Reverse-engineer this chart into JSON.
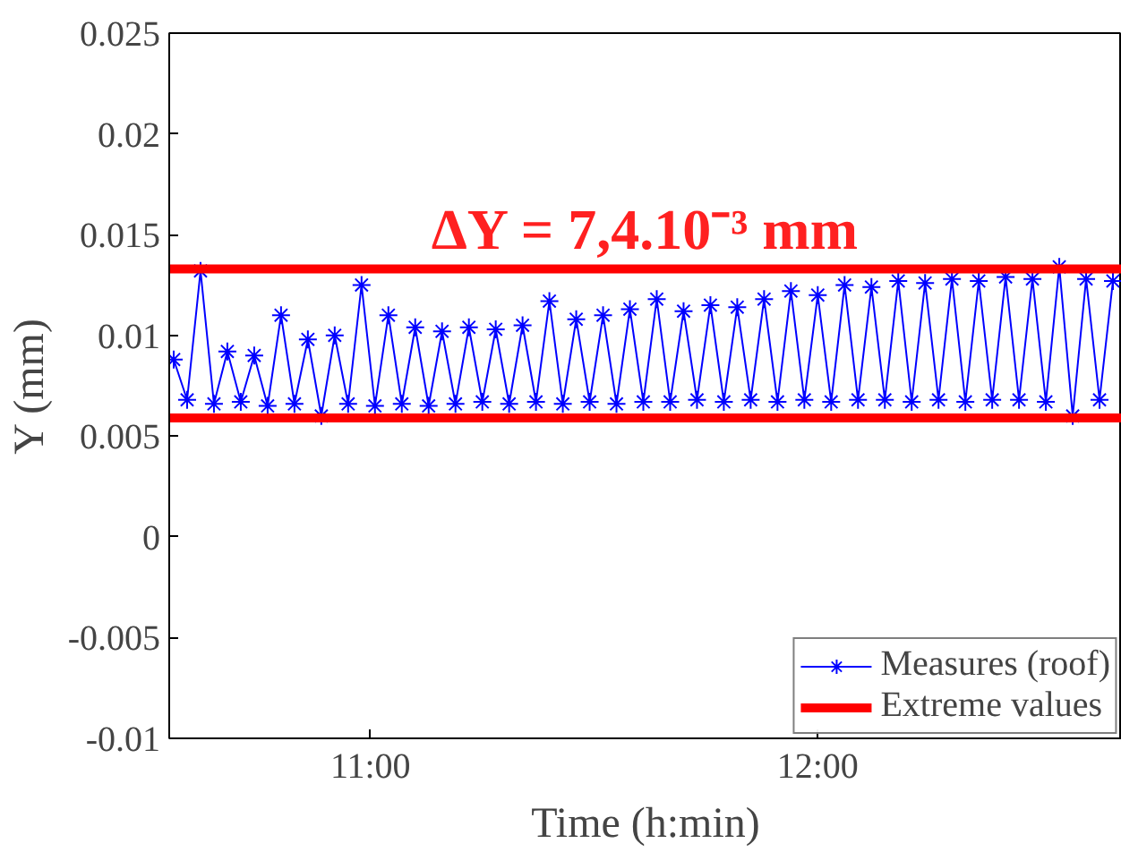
{
  "chart_data": {
    "type": "line",
    "xlabel": "Time (h:min)",
    "ylabel": "Y (mm)",
    "annotations": [
      "ΔY = 7,4.10⁻³ mm"
    ],
    "xlim": [
      10.55,
      12.68
    ],
    "xticks": [
      {
        "value": 11,
        "label": "11:00"
      },
      {
        "value": 12,
        "label": "12:00"
      }
    ],
    "ylim": [
      -0.01,
      0.025
    ],
    "yticks": [
      -0.01,
      -0.005,
      0,
      0.005,
      0.01,
      0.015,
      0.02,
      0.025
    ],
    "series": [
      {
        "name": "Measures (roof)",
        "color": "#0000ff",
        "x": [
          10.56,
          10.59,
          10.62,
          10.65,
          10.68,
          10.71,
          10.74,
          10.77,
          10.8,
          10.83,
          10.86,
          10.89,
          10.92,
          10.95,
          10.98,
          11.01,
          11.04,
          11.07,
          11.1,
          11.13,
          11.16,
          11.19,
          11.22,
          11.25,
          11.28,
          11.31,
          11.34,
          11.37,
          11.4,
          11.43,
          11.46,
          11.49,
          11.52,
          11.55,
          11.58,
          11.61,
          11.64,
          11.67,
          11.7,
          11.73,
          11.76,
          11.79,
          11.82,
          11.85,
          11.88,
          11.91,
          11.94,
          11.97,
          12.0,
          12.03,
          12.06,
          12.09,
          12.12,
          12.15,
          12.18,
          12.21,
          12.24,
          12.27,
          12.3,
          12.33,
          12.36,
          12.39,
          12.42,
          12.45,
          12.48,
          12.51,
          12.54,
          12.57,
          12.6,
          12.63,
          12.66
        ],
        "values": [
          0.0088,
          0.0068,
          0.0132,
          0.0066,
          0.0092,
          0.0067,
          0.009,
          0.0065,
          0.011,
          0.0066,
          0.0098,
          0.006,
          0.01,
          0.0066,
          0.0125,
          0.0065,
          0.011,
          0.0066,
          0.0104,
          0.0065,
          0.0102,
          0.0066,
          0.0104,
          0.0067,
          0.0103,
          0.0066,
          0.0105,
          0.0067,
          0.0117,
          0.0066,
          0.0108,
          0.0067,
          0.011,
          0.0066,
          0.0113,
          0.0067,
          0.0118,
          0.0067,
          0.0112,
          0.0068,
          0.0115,
          0.0067,
          0.0114,
          0.0068,
          0.0118,
          0.0067,
          0.0122,
          0.0068,
          0.012,
          0.0067,
          0.0125,
          0.0068,
          0.0124,
          0.0068,
          0.0127,
          0.0067,
          0.0126,
          0.0068,
          0.0128,
          0.0067,
          0.0127,
          0.0068,
          0.0129,
          0.0068,
          0.0128,
          0.0067,
          0.0134,
          0.006,
          0.0128,
          0.0068,
          0.0127
        ]
      }
    ],
    "marker": "cross",
    "line_style": "solid",
    "ref_lines": [
      {
        "axis": "y",
        "value": 0.0133,
        "label": "Extreme values",
        "color": "#ff0000"
      },
      {
        "axis": "y",
        "value": 0.0059,
        "label": null,
        "color": "#ff0000"
      }
    ],
    "grid": false,
    "legend": "bottom right"
  }
}
